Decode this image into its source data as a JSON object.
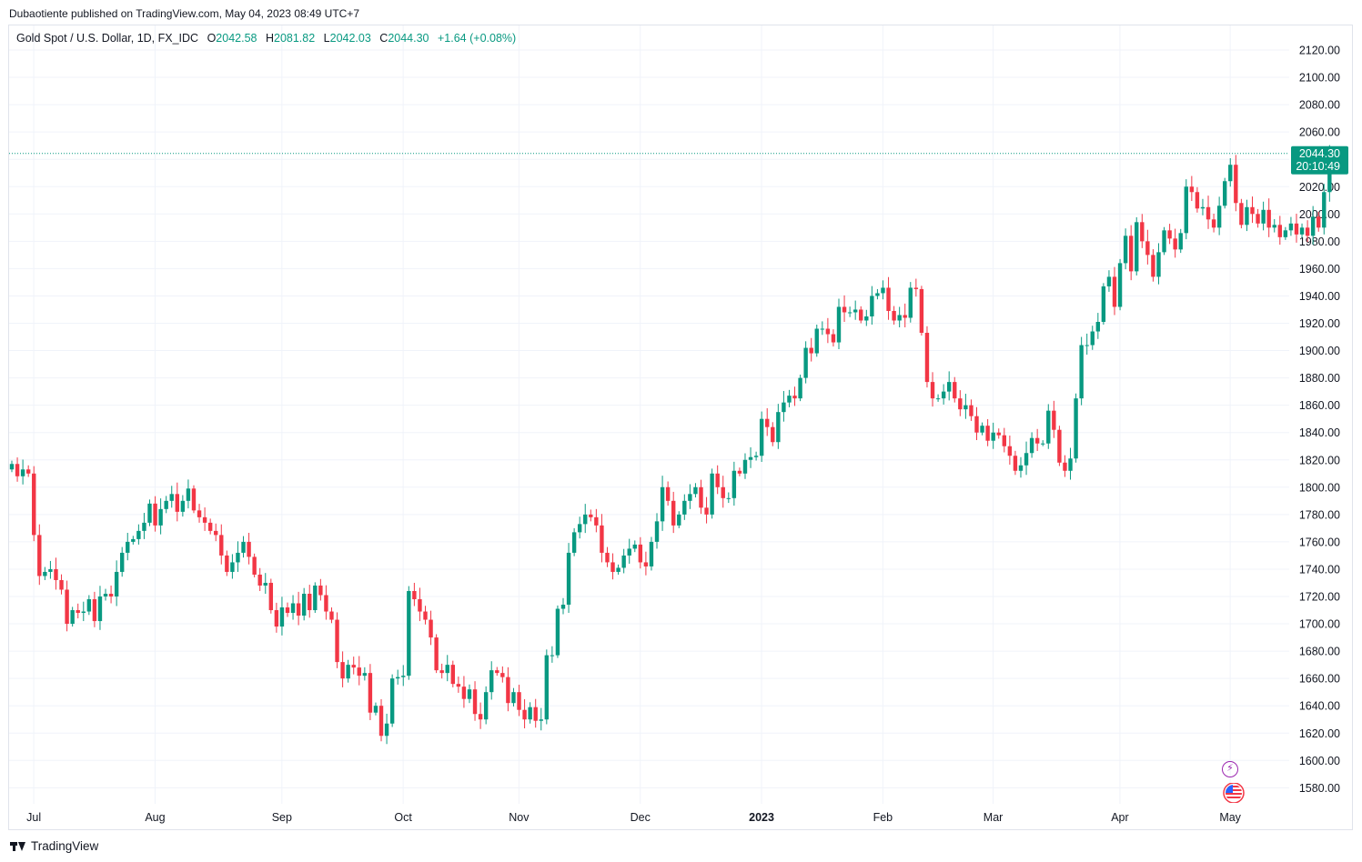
{
  "publisher_line": "Dubaotiente published on TradingView.com, May 04, 2023 08:49 UTC+7",
  "legend": {
    "symbol": "Gold Spot / U.S. Dollar, 1D, FX_IDC",
    "open_label": "O",
    "open": "2042.58",
    "high_label": "H",
    "high": "2081.82",
    "low_label": "L",
    "low": "2042.03",
    "close_label": "C",
    "close": "2044.30",
    "change": "+1.64 (+0.08%)"
  },
  "price_badge": {
    "price": "2044.30",
    "countdown": "20:10:49"
  },
  "brand": "TradingView",
  "colors": {
    "up": "#089981",
    "down": "#f23645",
    "grid": "#f0f3fa",
    "badge": "#089981",
    "event_icon": "#9c27b0"
  },
  "icons": {
    "event": "lightning-icon",
    "economy": "us-flag-icon"
  },
  "chart_data": {
    "type": "candlestick",
    "ylim": [
      1570,
      2130
    ],
    "y_ticks": [
      "2120.00",
      "2100.00",
      "2080.00",
      "2060.00",
      "2040.00",
      "2020.00",
      "2000.00",
      "1980.00",
      "1960.00",
      "1940.00",
      "1920.00",
      "1900.00",
      "1880.00",
      "1860.00",
      "1840.00",
      "1820.00",
      "1800.00",
      "1780.00",
      "1760.00",
      "1740.00",
      "1720.00",
      "1700.00",
      "1680.00",
      "1660.00",
      "1640.00",
      "1620.00",
      "1600.00",
      "1580.00"
    ],
    "x_ticks": [
      {
        "label": "Jul",
        "bar": 2
      },
      {
        "label": "Aug",
        "bar": 24
      },
      {
        "label": "Sep",
        "bar": 47
      },
      {
        "label": "Oct",
        "bar": 69
      },
      {
        "label": "Nov",
        "bar": 90
      },
      {
        "label": "Dec",
        "bar": 112
      },
      {
        "label": "2023",
        "bar": 134,
        "bold": true
      },
      {
        "label": "Feb",
        "bar": 156
      },
      {
        "label": "Mar",
        "bar": 176
      },
      {
        "label": "Apr",
        "bar": 199
      },
      {
        "label": "May",
        "bar": 219
      }
    ],
    "last_price": 2044.3,
    "closes": [
      1817,
      1808,
      1813,
      1810,
      1765,
      1735,
      1738,
      1740,
      1732,
      1725,
      1700,
      1710,
      1708,
      1709,
      1718,
      1702,
      1720,
      1722,
      1720,
      1738,
      1752,
      1760,
      1762,
      1768,
      1774,
      1788,
      1772,
      1784,
      1790,
      1795,
      1782,
      1790,
      1799,
      1783,
      1778,
      1774,
      1768,
      1765,
      1750,
      1738,
      1745,
      1752,
      1760,
      1749,
      1736,
      1728,
      1730,
      1710,
      1698,
      1712,
      1708,
      1715,
      1706,
      1722,
      1710,
      1728,
      1721,
      1709,
      1703,
      1672,
      1660,
      1670,
      1668,
      1662,
      1664,
      1635,
      1640,
      1618,
      1627,
      1660,
      1661,
      1662,
      1724,
      1718,
      1709,
      1703,
      1690,
      1666,
      1664,
      1670,
      1656,
      1654,
      1645,
      1652,
      1634,
      1630,
      1650,
      1666,
      1664,
      1661,
      1642,
      1650,
      1637,
      1630,
      1639,
      1629,
      1630,
      1677,
      1677,
      1711,
      1714,
      1752,
      1767,
      1773,
      1780,
      1778,
      1772,
      1752,
      1745,
      1738,
      1741,
      1750,
      1755,
      1758,
      1745,
      1742,
      1760,
      1775,
      1800,
      1790,
      1772,
      1780,
      1790,
      1795,
      1800,
      1785,
      1780,
      1810,
      1800,
      1792,
      1792,
      1812,
      1810,
      1820,
      1822,
      1823,
      1850,
      1844,
      1833,
      1855,
      1862,
      1867,
      1865,
      1880,
      1902,
      1898,
      1916,
      1916,
      1912,
      1906,
      1932,
      1928,
      1928,
      1930,
      1922,
      1925,
      1940,
      1942,
      1946,
      1929,
      1922,
      1926,
      1924,
      1946,
      1945,
      1913,
      1877,
      1865,
      1865,
      1870,
      1877,
      1865,
      1857,
      1860,
      1852,
      1840,
      1845,
      1834,
      1840,
      1838,
      1830,
      1823,
      1812,
      1816,
      1825,
      1836,
      1832,
      1832,
      1856,
      1842,
      1818,
      1812,
      1821,
      1865,
      1904,
      1904,
      1914,
      1921,
      1947,
      1954,
      1932,
      1964,
      1984,
      1958,
      1994,
      1980,
      1970,
      1954,
      1972,
      1988,
      1982,
      1974,
      1986,
      2020,
      2016,
      2004,
      2005,
      1996,
      1990,
      2006,
      2024,
      2036,
      2008,
      1992,
      2005,
      2000,
      1993,
      2003,
      1990,
      1992,
      1983,
      1988,
      1993,
      1985,
      1990,
      1984,
      1998,
      1990,
      2016,
      2042,
      2044
    ],
    "series_note": ""
  }
}
